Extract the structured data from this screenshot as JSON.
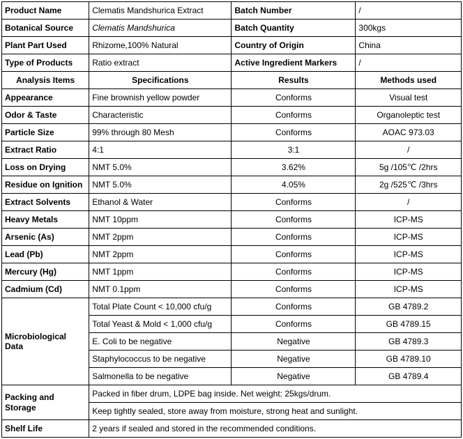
{
  "header": {
    "rows": [
      {
        "l1": "Product Name",
        "v1": "Clematis Mandshurica Extract",
        "l2": "Batch Number",
        "v2": "/"
      },
      {
        "l1": "Botanical Source",
        "v1": "Clematis Mandshurica",
        "v1_italic": true,
        "l2": "Batch Quantity",
        "v2": "300kgs"
      },
      {
        "l1": "Plant Part Used",
        "v1": "Rhizome,100% Natural",
        "l2": "Country of Origin",
        "v2": "China"
      },
      {
        "l1": "Type of Products",
        "v1": "Ratio extract",
        "l2": "Active Ingredient  Markers",
        "v2": "/"
      }
    ]
  },
  "analysis_header": {
    "c1": "Analysis Items",
    "c2": "Specifications",
    "c3": "Results",
    "c4": "Methods used"
  },
  "analysis": [
    {
      "item": "Appearance",
      "spec": "Fine brownish yellow powder",
      "result": "Conforms",
      "method": "Visual test"
    },
    {
      "item": "Odor & Taste",
      "spec": "Characteristic",
      "result": "Conforms",
      "method": "Organoleptic test"
    },
    {
      "item": "Particle Size",
      "spec": "99% through 80 Mesh",
      "result": "Conforms",
      "method": "AOAC 973.03"
    }
  ],
  "extract": [
    {
      "item": "Extract Ratio",
      "spec": "4:1",
      "result": "3:1",
      "method": "/"
    },
    {
      "item": "Loss on Drying",
      "spec": "NMT 5.0%",
      "result": "3.62%",
      "method": "5g /105℃ /2hrs"
    },
    {
      "item": "Residue on Ignition",
      "spec": "NMT 5.0%",
      "result": "4.05%",
      "method": "2g /525℃ /3hrs"
    },
    {
      "item": "Extract Solvents",
      "spec": "Ethanol & Water",
      "result": "Conforms",
      "method": "/"
    }
  ],
  "metals": [
    {
      "item": "Heavy Metals",
      "spec": "NMT 10ppm",
      "result": "Conforms",
      "method": "ICP-MS"
    },
    {
      "item": "Arsenic (As)",
      "spec": "NMT 2ppm",
      "result": "Conforms",
      "method": "ICP-MS"
    },
    {
      "item": "Lead (Pb)",
      "spec": "NMT 2ppm",
      "result": "Conforms",
      "method": "ICP-MS"
    },
    {
      "item": "Mercury (Hg)",
      "spec": "NMT 1ppm",
      "result": "Conforms",
      "method": "ICP-MS"
    },
    {
      "item": "Cadmium (Cd)",
      "spec": "NMT 0.1ppm",
      "result": "Conforms",
      "method": "ICP-MS"
    }
  ],
  "micro_label": "Microbiological Data",
  "micro": [
    {
      "spec": "Total Plate Count < 10,000 cfu/g",
      "result": "Conforms",
      "method": "GB 4789.2"
    },
    {
      "spec": "Total Yeast & Mold < 1,000 cfu/g",
      "result": "Conforms",
      "method": "GB 4789.15"
    },
    {
      "spec": "E. Coli to be negative",
      "result": "Negative",
      "method": "GB 4789.3"
    },
    {
      "spec": "Staphylococcus to be negative",
      "result": "Negative",
      "method": "GB 4789.10"
    },
    {
      "spec": "Salmonella to be negative",
      "result": "Negative",
      "method": "GB 4789.4"
    }
  ],
  "packing_label": "Packing and Storage",
  "packing": [
    "Packed in fiber drum, LDPE bag inside. Net weight: 25kgs/drum.",
    "Keep tightly sealed, store away from moisture, strong heat and sunlight."
  ],
  "shelf_label": "Shelf Life",
  "shelf_value": "2 years if sealed and stored in the recommended conditions."
}
